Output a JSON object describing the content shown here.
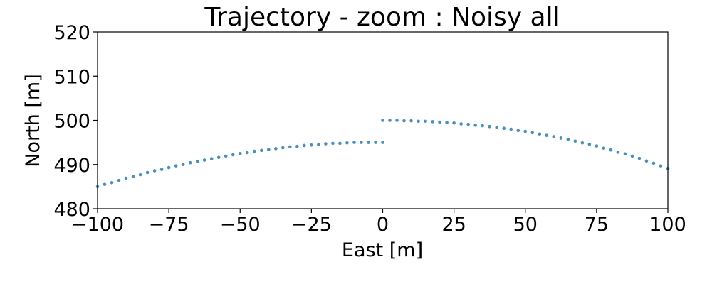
{
  "chart_data": {
    "type": "scatter",
    "title": "Trajectory - zoom : Noisy all",
    "xlabel": "East [m]",
    "ylabel": "North [m]",
    "xlim": [
      -100,
      100
    ],
    "ylim": [
      480,
      520
    ],
    "x_ticks": [
      -100,
      -75,
      -50,
      -25,
      0,
      25,
      50,
      75,
      100
    ],
    "x_tick_labels": [
      "−100",
      "−75",
      "−50",
      "−25",
      "0",
      "25",
      "50",
      "75",
      "100"
    ],
    "y_ticks": [
      480,
      490,
      500,
      510,
      520
    ],
    "y_tick_labels": [
      "480",
      "490",
      "500",
      "510",
      "520"
    ],
    "grid": false,
    "legend": "none",
    "marker_color": "#4c8fb8",
    "segments": [
      {
        "x": [
          -100,
          -97.5,
          -95,
          -92.5,
          -90,
          -87.5,
          -85,
          -82.5,
          -80,
          -77.5,
          -75,
          -72.5,
          -70,
          -67.5,
          -65,
          -62.5,
          -60,
          -57.5,
          -55,
          -52.5,
          -50,
          -47.5,
          -45,
          -42.5,
          -40,
          -37.5,
          -35,
          -32.5,
          -30,
          -27.5,
          -25,
          -22.5,
          -20,
          -17.5,
          -15,
          -12.5,
          -10,
          -7.5,
          -5,
          -2.5,
          0
        ],
        "y": [
          485.0,
          485.5,
          485.9,
          486.4,
          486.9,
          487.3,
          487.7,
          488.2,
          488.6,
          488.9,
          489.3,
          489.7,
          490.0,
          490.4,
          490.7,
          491.0,
          491.3,
          491.6,
          491.9,
          492.2,
          492.5,
          492.7,
          493.0,
          493.2,
          493.4,
          493.6,
          493.8,
          494.0,
          494.1,
          494.3,
          494.4,
          494.5,
          494.7,
          494.8,
          494.8,
          494.9,
          495.0,
          495.0,
          495.0,
          495.0,
          495.0
        ]
      },
      {
        "x": [
          0,
          2.5,
          5,
          7.5,
          10,
          12.5,
          15,
          17.5,
          20,
          22.5,
          25,
          27.5,
          30,
          32.5,
          35,
          37.5,
          40,
          42.5,
          45,
          47.5,
          50,
          52.5,
          55,
          57.5,
          60,
          62.5,
          65,
          67.5,
          70,
          72.5,
          75,
          77.5,
          80,
          82.5,
          85,
          87.5,
          90,
          92.5,
          95,
          97.5,
          100
        ],
        "y": [
          500.0,
          500.0,
          500.0,
          499.9,
          499.9,
          499.8,
          499.8,
          499.7,
          499.6,
          499.5,
          499.4,
          499.2,
          499.1,
          498.9,
          498.8,
          498.6,
          498.4,
          498.2,
          498.0,
          497.7,
          497.5,
          497.2,
          496.9,
          496.6,
          496.3,
          496.0,
          495.7,
          495.3,
          494.9,
          494.6,
          494.2,
          493.7,
          493.3,
          492.8,
          492.4,
          491.9,
          491.4,
          490.8,
          490.3,
          489.7,
          489.1
        ]
      }
    ]
  }
}
